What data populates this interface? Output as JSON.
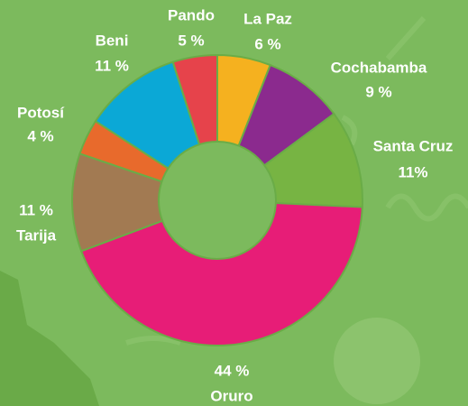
{
  "chart_data": {
    "type": "donut",
    "categories": [
      "La Paz",
      "Cochabamba",
      "Santa Cruz",
      "Oruro",
      "Tarija",
      "Potosí",
      "Beni",
      "Pando"
    ],
    "values": [
      6,
      9,
      11,
      44,
      11,
      4,
      11,
      5
    ],
    "value_labels": [
      "6 %",
      "9 %",
      "11%",
      "44 %",
      "11 %",
      "4 %",
      "11 %",
      "5 %"
    ],
    "colors": [
      "#f5b11f",
      "#8b2a8e",
      "#77b443",
      "#e71d77",
      "#a27a52",
      "#e86a2c",
      "#0ba8d6",
      "#e6434b"
    ]
  }
}
